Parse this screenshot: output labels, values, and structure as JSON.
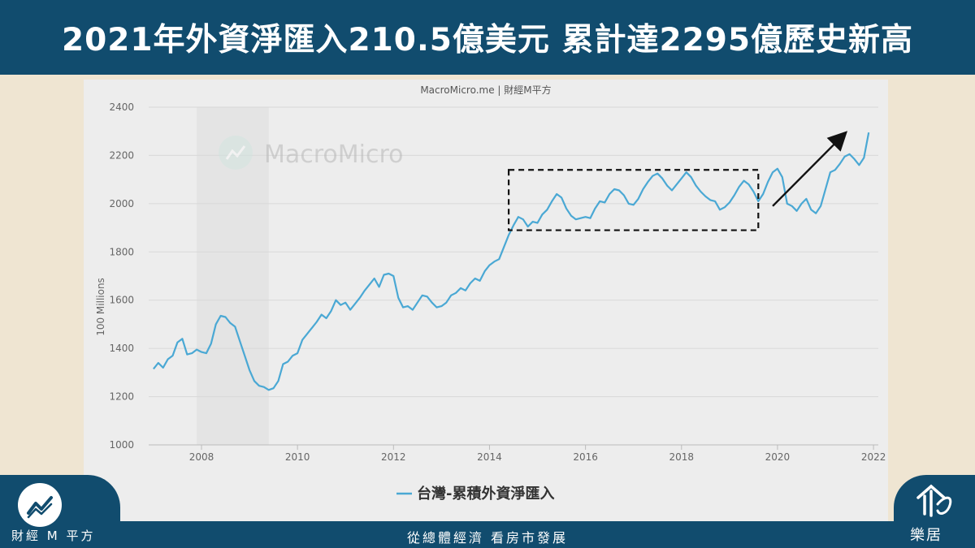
{
  "title": "2021年外資淨匯入210.5億美元 累計達2295億歷史新高",
  "source_label": "MacroMicro.me | 財經M平方",
  "watermark_text": "MacroMicro",
  "tagline": "從總體經濟 看房市發展",
  "brand_left": {
    "name": "財經 M 平方",
    "logo_icon": "macromicro-chart-logo-icon"
  },
  "brand_right": {
    "name": "樂居",
    "logo_icon": "leju-house-logo-icon"
  },
  "colors": {
    "banner": "#114c6e",
    "background": "#efe5d2",
    "line": "#4aa8d4",
    "card": "#ededed"
  },
  "chart_data": {
    "type": "line",
    "title": "",
    "xlabel": "",
    "ylabel": "100 Millions",
    "xlim": [
      2006.9,
      2022.1
    ],
    "ylim": [
      1000,
      2400
    ],
    "yticks": [
      1000,
      1200,
      1400,
      1600,
      1800,
      2000,
      2200,
      2400
    ],
    "xticks": [
      2008,
      2010,
      2012,
      2014,
      2016,
      2018,
      2020,
      2022
    ],
    "grid": true,
    "legend_position": "bottom-center",
    "shaded_period": [
      2007.9,
      2009.4
    ],
    "highlight_box": {
      "x": [
        2014.4,
        2019.6
      ],
      "y": [
        1890,
        2140
      ],
      "style": "dashed"
    },
    "trend_arrow": {
      "from": [
        2019.9,
        1990
      ],
      "to": [
        2021.4,
        2290
      ]
    },
    "series": [
      {
        "name": "台灣-累積外資淨匯入",
        "x": [
          2007.0,
          2007.1,
          2007.2,
          2007.3,
          2007.4,
          2007.5,
          2007.6,
          2007.7,
          2007.8,
          2007.9,
          2008.0,
          2008.1,
          2008.2,
          2008.3,
          2008.4,
          2008.5,
          2008.6,
          2008.7,
          2008.8,
          2008.9,
          2009.0,
          2009.1,
          2009.2,
          2009.3,
          2009.4,
          2009.5,
          2009.6,
          2009.7,
          2009.8,
          2009.9,
          2010.0,
          2010.1,
          2010.2,
          2010.3,
          2010.4,
          2010.5,
          2010.6,
          2010.7,
          2010.8,
          2010.9,
          2011.0,
          2011.1,
          2011.2,
          2011.3,
          2011.4,
          2011.5,
          2011.6,
          2011.7,
          2011.8,
          2011.9,
          2012.0,
          2012.1,
          2012.2,
          2012.3,
          2012.4,
          2012.5,
          2012.6,
          2012.7,
          2012.8,
          2012.9,
          2013.0,
          2013.1,
          2013.2,
          2013.3,
          2013.4,
          2013.5,
          2013.6,
          2013.7,
          2013.8,
          2013.9,
          2014.0,
          2014.1,
          2014.2,
          2014.3,
          2014.4,
          2014.5,
          2014.6,
          2014.7,
          2014.8,
          2014.9,
          2015.0,
          2015.1,
          2015.2,
          2015.3,
          2015.4,
          2015.5,
          2015.6,
          2015.7,
          2015.8,
          2015.9,
          2016.0,
          2016.1,
          2016.2,
          2016.3,
          2016.4,
          2016.5,
          2016.6,
          2016.7,
          2016.8,
          2016.9,
          2017.0,
          2017.1,
          2017.2,
          2017.3,
          2017.4,
          2017.5,
          2017.6,
          2017.7,
          2017.8,
          2017.9,
          2018.0,
          2018.1,
          2018.2,
          2018.3,
          2018.4,
          2018.5,
          2018.6,
          2018.7,
          2018.8,
          2018.9,
          2019.0,
          2019.1,
          2019.2,
          2019.3,
          2019.4,
          2019.5,
          2019.6,
          2019.7,
          2019.8,
          2019.9,
          2020.0,
          2020.1,
          2020.2,
          2020.3,
          2020.4,
          2020.5,
          2020.6,
          2020.7,
          2020.8,
          2020.9,
          2021.0,
          2021.1,
          2021.2,
          2021.3,
          2021.4,
          2021.5,
          2021.6,
          2021.7,
          2021.8,
          2021.9
        ],
        "values": [
          1315,
          1340,
          1320,
          1355,
          1370,
          1425,
          1440,
          1375,
          1380,
          1395,
          1385,
          1380,
          1420,
          1500,
          1535,
          1530,
          1505,
          1490,
          1430,
          1370,
          1310,
          1265,
          1245,
          1240,
          1228,
          1235,
          1265,
          1335,
          1345,
          1370,
          1380,
          1435,
          1460,
          1485,
          1510,
          1540,
          1525,
          1555,
          1600,
          1580,
          1590,
          1560,
          1585,
          1610,
          1640,
          1665,
          1690,
          1655,
          1705,
          1710,
          1700,
          1610,
          1570,
          1575,
          1560,
          1590,
          1620,
          1615,
          1590,
          1570,
          1575,
          1590,
          1620,
          1630,
          1650,
          1640,
          1670,
          1690,
          1680,
          1720,
          1745,
          1760,
          1770,
          1820,
          1870,
          1910,
          1945,
          1935,
          1905,
          1925,
          1920,
          1955,
          1975,
          2010,
          2040,
          2025,
          1980,
          1950,
          1935,
          1940,
          1945,
          1940,
          1980,
          2010,
          2005,
          2040,
          2060,
          2055,
          2035,
          2000,
          1995,
          2020,
          2060,
          2090,
          2115,
          2125,
          2105,
          2075,
          2055,
          2080,
          2105,
          2130,
          2110,
          2075,
          2050,
          2030,
          2015,
          2010,
          1975,
          1985,
          2005,
          2035,
          2070,
          2095,
          2080,
          2050,
          2010,
          2040,
          2090,
          2130,
          2145,
          2110,
          2000,
          1990,
          1970,
          2000,
          2020,
          1975,
          1960,
          1990,
          2060,
          2130,
          2140,
          2165,
          2195,
          2205,
          2185,
          2160,
          2190,
          2295
        ]
      }
    ]
  }
}
